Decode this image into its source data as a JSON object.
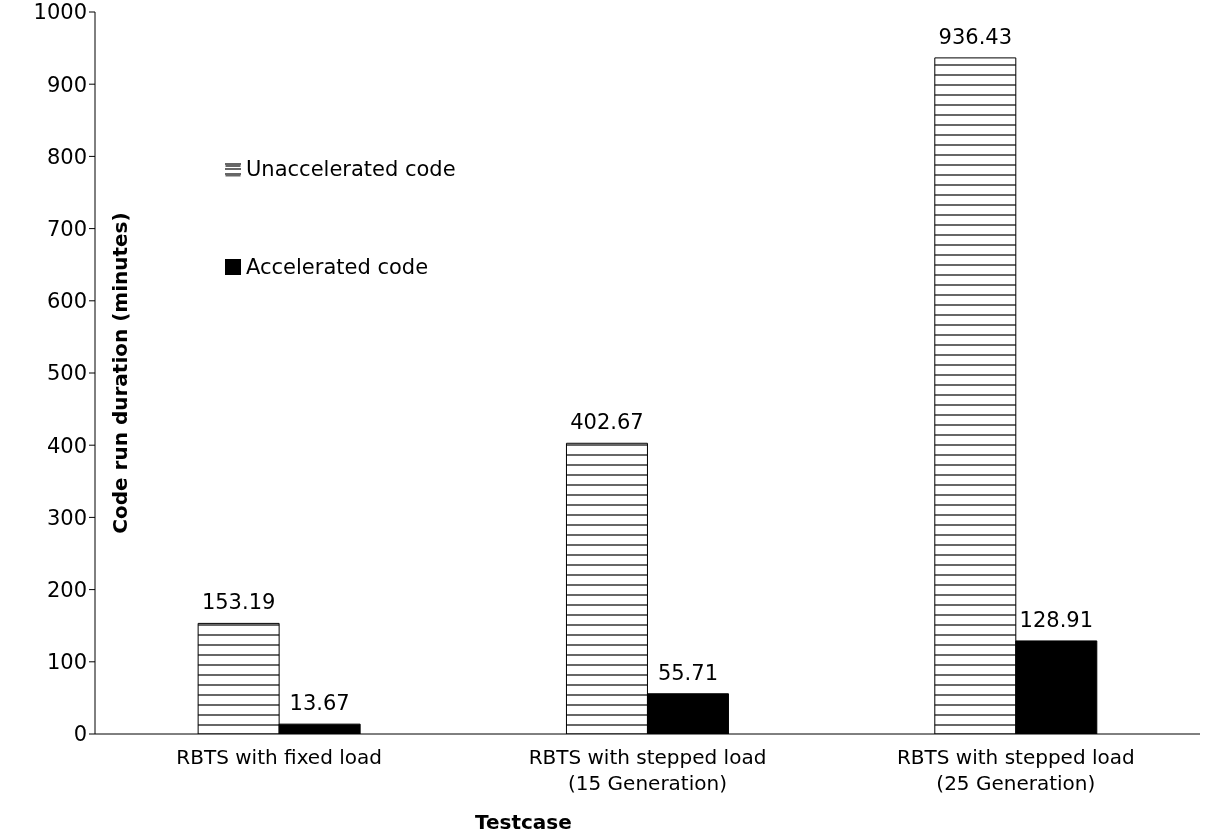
{
  "chart_data": {
    "type": "bar",
    "xlabel": "Testcase",
    "ylabel": "Code run duration (minutes)",
    "categories": [
      "RBTS with fixed load",
      "RBTS with stepped load\n(15 Generation)",
      "RBTS with stepped load\n(25 Generation)"
    ],
    "series": [
      {
        "name": "Unaccelerated code",
        "color": "#000000",
        "values": [
          153.19,
          402.67,
          936.43
        ]
      },
      {
        "name": "Accelerated code",
        "color": "#000000",
        "values": [
          13.67,
          55.71,
          128.91
        ]
      }
    ],
    "ylim": [
      0,
      1000
    ],
    "yticks": [
      0,
      100,
      200,
      300,
      400,
      500,
      600,
      700,
      800,
      900,
      1000
    ],
    "grid": false,
    "legend": "top left",
    "data_labels": true
  }
}
